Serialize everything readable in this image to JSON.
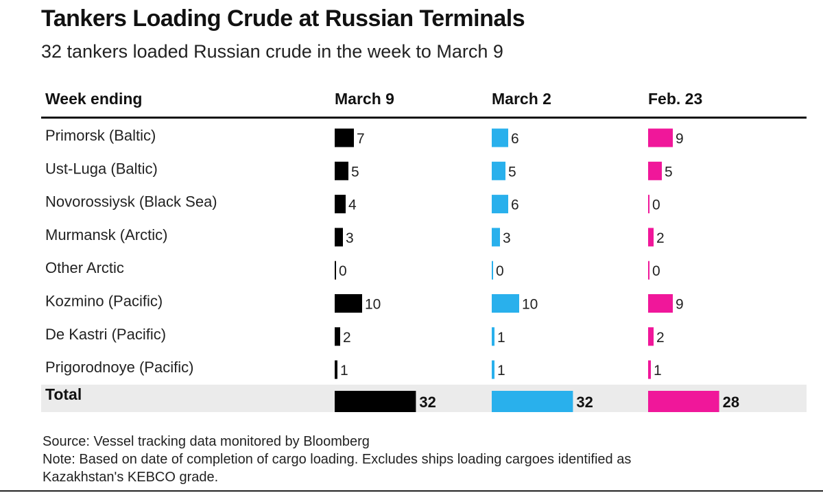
{
  "title": "Tankers Loading Crude at Russian Terminals",
  "subtitle": "32 tankers loaded Russian crude in the week to March 9",
  "chart_data": {
    "type": "table",
    "header_label": "Week ending",
    "categories": [
      "Primorsk (Baltic)",
      "Ust-Luga (Baltic)",
      "Novorossiysk (Black Sea)",
      "Murmansk (Arctic)",
      "Other Arctic",
      "Kozmino (Pacific)",
      "De Kastri (Pacific)",
      "Prigorodnoye (Pacific)"
    ],
    "total_label": "Total",
    "series": [
      {
        "name": "March 9",
        "color": "#000000",
        "values": [
          7,
          5,
          4,
          3,
          0,
          10,
          2,
          1
        ],
        "total": 32
      },
      {
        "name": "March 2",
        "color": "#29b0ec",
        "values": [
          6,
          5,
          6,
          3,
          0,
          10,
          1,
          1
        ],
        "total": 32
      },
      {
        "name": "Feb. 23",
        "color": "#f0179a",
        "values": [
          9,
          5,
          0,
          2,
          0,
          9,
          2,
          1
        ],
        "total": 28
      }
    ]
  },
  "footer": {
    "source": "Source: Vessel tracking data monitored by Bloomberg",
    "note_line1": "Note: Based on date of completion of cargo loading. Excludes ships loading cargoes identified as",
    "note_line2": "Kazakhstan's KEBCO grade."
  }
}
